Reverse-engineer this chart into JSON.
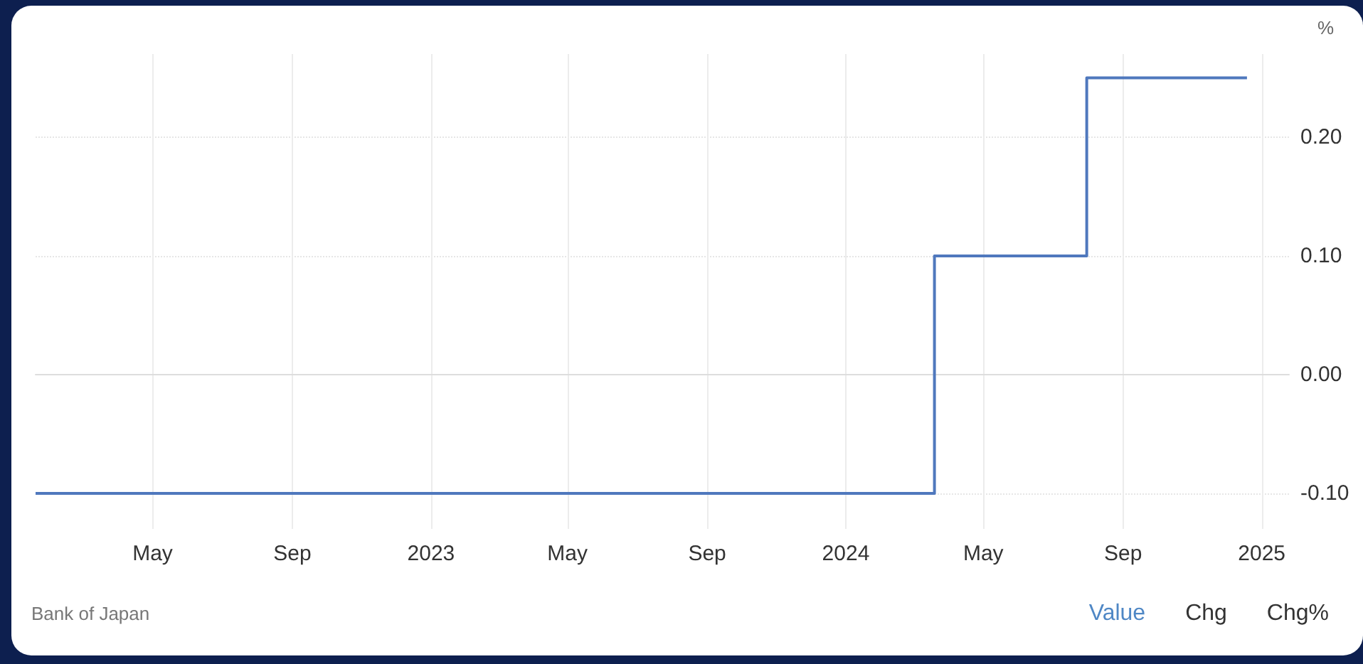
{
  "chart_data": {
    "type": "step",
    "ylabel": "%",
    "x": [
      "2022-01-18",
      "2024-03-19",
      "2024-07-31",
      "2024-12-19"
    ],
    "series": [
      {
        "color": "#4f78bd",
        "values": [
          -0.1,
          0.1,
          0.25,
          0.25
        ]
      }
    ],
    "xlim": [
      "2022-01-18",
      "2025-01-25"
    ],
    "xticks": [
      {
        "value": "2022-05-01",
        "label": "May"
      },
      {
        "value": "2022-09-01",
        "label": "Sep"
      },
      {
        "value": "2023-01-01",
        "label": "2023"
      },
      {
        "value": "2023-05-01",
        "label": "May"
      },
      {
        "value": "2023-09-01",
        "label": "Sep"
      },
      {
        "value": "2024-01-01",
        "label": "2024"
      },
      {
        "value": "2024-05-01",
        "label": "May"
      },
      {
        "value": "2024-09-01",
        "label": "Sep"
      },
      {
        "value": "2025-01-01",
        "label": "2025"
      }
    ],
    "ylim": [
      -0.13,
      0.27
    ],
    "yticks": [
      {
        "value": -0.1,
        "label": "-0.10"
      },
      {
        "value": 0,
        "label": "0.00"
      },
      {
        "value": 0.1,
        "label": "0.10"
      },
      {
        "value": 0.2,
        "label": "0.20"
      }
    ],
    "grid": true,
    "annotations": [
      "Bank of Japan",
      "Value",
      "Chg",
      "Chg%"
    ]
  }
}
